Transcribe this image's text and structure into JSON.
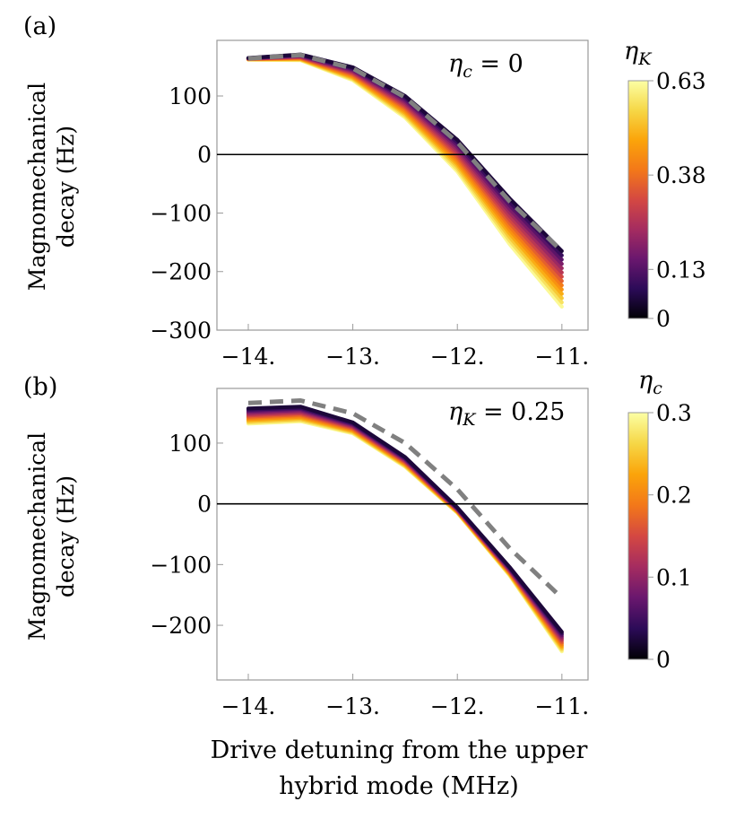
{
  "chart_data": [
    {
      "type": "line",
      "panel_label": "(a)",
      "title": "",
      "xlabel": "",
      "ylabel": [
        "Magnomechanical",
        "decay (Hz)"
      ],
      "xlim": [
        -14.3,
        -10.75
      ],
      "ylim": [
        -300,
        195
      ],
      "xticks": [
        -14,
        -13,
        -12,
        -11
      ],
      "xtick_labels": [
        "−14.",
        "−13.",
        "−12.",
        "−11."
      ],
      "yticks": [
        100,
        0,
        -100,
        -200,
        -300
      ],
      "ytick_labels": [
        "100",
        "0",
        "−100",
        "−200",
        "−300"
      ],
      "annotation": {
        "symbol": "η",
        "sub": "c",
        "rest": " = 0"
      },
      "zero_line": true,
      "reference_curve": {
        "name": "dashed",
        "color": "#808080",
        "x": [
          -14,
          -13.5,
          -13,
          -12.5,
          -12,
          -11.5,
          -11
        ],
        "y": [
          164,
          170,
          147,
          98,
          21,
          -80,
          -165
        ]
      },
      "family": {
        "param": "ηK",
        "n": 14,
        "range": [
          0,
          0.63
        ],
        "first": {
          "x": [
            -14,
            -13.5,
            -13,
            -12.5,
            -12,
            -11.5,
            -11
          ],
          "y": [
            165,
            171,
            149,
            100,
            25,
            -75,
            -165
          ]
        },
        "last": {
          "x": [
            -14,
            -13.5,
            -13,
            -12.5,
            -12,
            -11.5,
            -11
          ],
          "y": [
            162,
            161,
            127,
            63,
            -29,
            -153,
            -260
          ]
        }
      },
      "colorbar": {
        "label_symbol": "η",
        "label_sub": "K",
        "min": 0,
        "max": 0.63,
        "ticks": [
          0,
          0.13,
          0.38,
          0.63
        ],
        "tick_labels": [
          "0",
          "0.13",
          "0.38",
          "0.63"
        ]
      }
    },
    {
      "type": "line",
      "panel_label": "(b)",
      "title": "",
      "xlabel": [
        "Drive detuning from the upper",
        "hybrid mode (MHz)"
      ],
      "ylabel": [
        "Magnomechanical",
        "decay (Hz)"
      ],
      "xlim": [
        -14.3,
        -10.75
      ],
      "ylim": [
        -290,
        190
      ],
      "xticks": [
        -14,
        -13,
        -12,
        -11
      ],
      "xtick_labels": [
        "−14.",
        "−13.",
        "−12.",
        "−11."
      ],
      "yticks": [
        100,
        0,
        -100,
        -200
      ],
      "ytick_labels": [
        "100",
        "0",
        "−100",
        "−200"
      ],
      "annotation": {
        "symbol": "η",
        "sub": "K",
        "rest": " = 0.25"
      },
      "zero_line": true,
      "reference_curve": {
        "name": "dashed",
        "color": "#808080",
        "x": [
          -14,
          -13.5,
          -13,
          -12.5,
          -12,
          -11.5,
          -11
        ],
        "y": [
          166,
          170,
          149,
          100,
          24,
          -73,
          -155
        ]
      },
      "family": {
        "param": "ηc",
        "n": 14,
        "range": [
          0,
          0.3
        ],
        "first": {
          "x": [
            -14,
            -13.5,
            -13,
            -12.5,
            -12,
            -11.5,
            -11
          ],
          "y": [
            157,
            160,
            134,
            77,
            -6,
            -104,
            -211
          ]
        },
        "last": {
          "x": [
            -14,
            -13.5,
            -13,
            -12.5,
            -12,
            -11.5,
            -11
          ],
          "y": [
            132,
            136,
            116,
            61,
            -15,
            -118,
            -243
          ]
        }
      },
      "colorbar": {
        "label_symbol": "η",
        "label_sub": "c",
        "min": 0,
        "max": 0.3,
        "ticks": [
          0,
          0.1,
          0.2,
          0.3
        ],
        "tick_labels": [
          "0",
          "0.1",
          "0.2",
          "0.3"
        ]
      }
    }
  ],
  "colormap_stops": [
    "#000004",
    "#2c0b58",
    "#6a176e",
    "#a52c60",
    "#d44842",
    "#f37819",
    "#fba40a",
    "#f6d746",
    "#fcffa4"
  ]
}
